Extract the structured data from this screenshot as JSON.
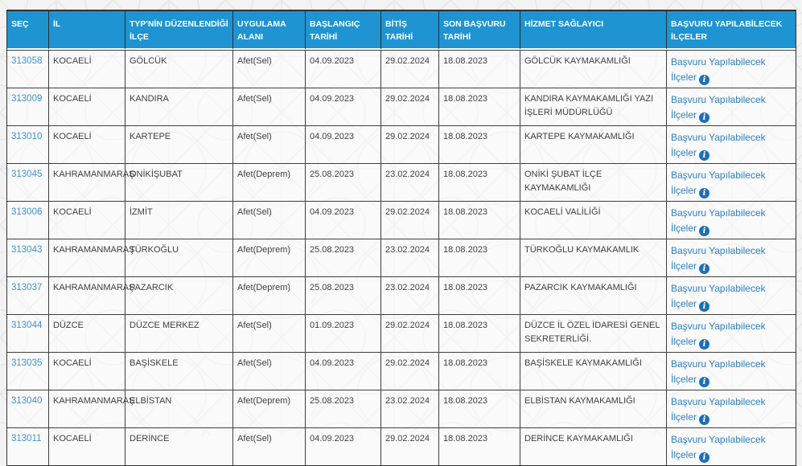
{
  "colors": {
    "header_bg": "#1e94d2",
    "header_text": "#ffffff",
    "id_link": "#3e93d0",
    "apply_link": "#2e7fc1",
    "info_icon_bg": "#1c70b8",
    "body_text": "#3f3f3f",
    "grid_border": "#3f3f3f",
    "page_bg": "#f3f3f3"
  },
  "table": {
    "columns": [
      {
        "key": "sec",
        "label": "SEÇ"
      },
      {
        "key": "il",
        "label": "İL"
      },
      {
        "key": "ilce",
        "label": "TYP'NİN DÜZENLENDİĞİ İLÇE"
      },
      {
        "key": "uygulama_alani",
        "label": "UYGULAMA ALANI"
      },
      {
        "key": "baslangic_tarihi",
        "label": "BAŞLANGIÇ TARİHİ"
      },
      {
        "key": "bitis_tarihi",
        "label": "BİTİŞ TARİHİ"
      },
      {
        "key": "son_basvuru_tarihi",
        "label": "SON BAŞVURU TARİHİ"
      },
      {
        "key": "hizmet_saglayici",
        "label": "HİZMET SAĞLAYICI"
      },
      {
        "key": "basvuru",
        "label": "BAŞVURU YAPILABİLECEK İLÇELER"
      }
    ],
    "apply_link_label": "Başvuru Yapılabilecek İlçeler",
    "info_icon_glyph": "i",
    "rows": [
      {
        "sec": "313058",
        "il": "KOCAELİ",
        "ilce": "GÖLCÜK",
        "uygulama_alani": "Afet(Sel)",
        "baslangic_tarihi": "04.09.2023",
        "bitis_tarihi": "29.02.2024",
        "son_basvuru_tarihi": "18.08.2023",
        "hizmet_saglayici": "GÖLCÜK KAYMAKAMLIĞI"
      },
      {
        "sec": "313009",
        "il": "KOCAELİ",
        "ilce": "KANDIRA",
        "uygulama_alani": "Afet(Sel)",
        "baslangic_tarihi": "04.09.2023",
        "bitis_tarihi": "29.02.2024",
        "son_basvuru_tarihi": "18.08.2023",
        "hizmet_saglayici": "KANDIRA KAYMAKAMLIĞI YAZI İŞLERİ MÜDÜRLÜĞÜ"
      },
      {
        "sec": "313010",
        "il": "KOCAELİ",
        "ilce": "KARTEPE",
        "uygulama_alani": "Afet(Sel)",
        "baslangic_tarihi": "04.09.2023",
        "bitis_tarihi": "29.02.2024",
        "son_basvuru_tarihi": "18.08.2023",
        "hizmet_saglayici": "KARTEPE KAYMAKAMLIĞI"
      },
      {
        "sec": "313045",
        "il": "KAHRAMANMARAŞ",
        "ilce": "ONİKİŞUBAT",
        "uygulama_alani": "Afet(Deprem)",
        "baslangic_tarihi": "25.08.2023",
        "bitis_tarihi": "23.02.2024",
        "son_basvuru_tarihi": "18.08.2023",
        "hizmet_saglayici": "ONİKİ ŞUBAT İLÇE KAYMAKAMLIĞI"
      },
      {
        "sec": "313006",
        "il": "KOCAELİ",
        "ilce": "İZMİT",
        "uygulama_alani": "Afet(Sel)",
        "baslangic_tarihi": "04.09.2023",
        "bitis_tarihi": "29.02.2024",
        "son_basvuru_tarihi": "18.08.2023",
        "hizmet_saglayici": "KOCAELİ VALİLİĞİ"
      },
      {
        "sec": "313043",
        "il": "KAHRAMANMARAŞ",
        "ilce": "TÜRKOĞLU",
        "uygulama_alani": "Afet(Deprem)",
        "baslangic_tarihi": "25.08.2023",
        "bitis_tarihi": "23.02.2024",
        "son_basvuru_tarihi": "18.08.2023",
        "hizmet_saglayici": "TÜRKOĞLU KAYMAKAMLIK"
      },
      {
        "sec": "313037",
        "il": "KAHRAMANMARAŞ",
        "ilce": "PAZARCIK",
        "uygulama_alani": "Afet(Deprem)",
        "baslangic_tarihi": "25.08.2023",
        "bitis_tarihi": "23.02.2024",
        "son_basvuru_tarihi": "18.08.2023",
        "hizmet_saglayici": "PAZARCIK KAYMAKAMLIĞI"
      },
      {
        "sec": "313044",
        "il": "DÜZCE",
        "ilce": "DÜZCE MERKEZ",
        "uygulama_alani": "Afet(Sel)",
        "baslangic_tarihi": "01.09.2023",
        "bitis_tarihi": "29.02.2024",
        "son_basvuru_tarihi": "18.08.2023",
        "hizmet_saglayici": "DÜZCE İL ÖZEL İDARESİ GENEL SEKRETERLİĞİ."
      },
      {
        "sec": "313035",
        "il": "KOCAELİ",
        "ilce": "BAŞİSKELE",
        "uygulama_alani": "Afet(Sel)",
        "baslangic_tarihi": "04.09.2023",
        "bitis_tarihi": "29.02.2024",
        "son_basvuru_tarihi": "18.08.2023",
        "hizmet_saglayici": "BAŞİSKELE KAYMAKAMLIĞI"
      },
      {
        "sec": "313040",
        "il": "KAHRAMANMARAŞ",
        "ilce": "ELBİSTAN",
        "uygulama_alani": "Afet(Deprem)",
        "baslangic_tarihi": "25.08.2023",
        "bitis_tarihi": "23.02.2024",
        "son_basvuru_tarihi": "18.08.2023",
        "hizmet_saglayici": "ELBİSTAN KAYMAKAMLIĞI"
      },
      {
        "sec": "313011",
        "il": "KOCAELİ",
        "ilce": "DERİNCE",
        "uygulama_alani": "Afet(Sel)",
        "baslangic_tarihi": "04.09.2023",
        "bitis_tarihi": "29.02.2024",
        "son_basvuru_tarihi": "18.08.2023",
        "hizmet_saglayici": "DERİNCE KAYMAKAMLIĞI"
      }
    ]
  }
}
